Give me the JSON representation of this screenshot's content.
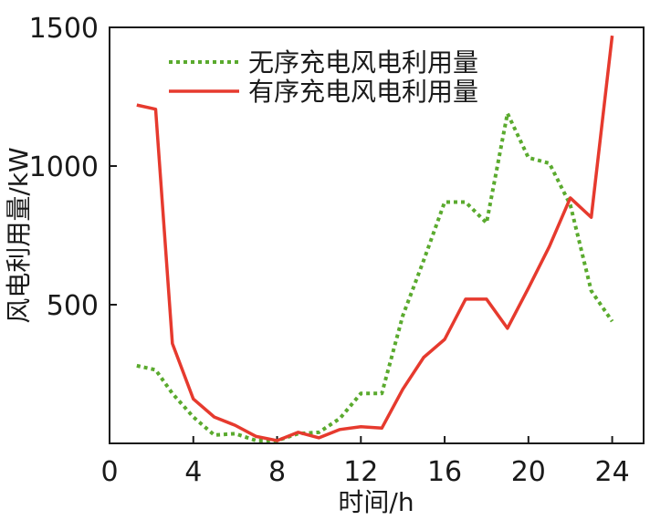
{
  "chart_data": {
    "type": "line",
    "xlabel": "时间/h",
    "ylabel": "风电利用量/kW",
    "xlim": [
      0,
      25.5
    ],
    "ylim": [
      0,
      1500
    ],
    "xticks": [
      0,
      4,
      8,
      12,
      16,
      20,
      24
    ],
    "yticks": [
      500,
      1000,
      1500
    ],
    "xtick_labels": [
      "0",
      "4",
      "8",
      "12",
      "16",
      "20",
      "24"
    ],
    "ytick_labels": [
      "500",
      "1000",
      "1500"
    ],
    "grid": false,
    "legend_position": "top-center",
    "series": [
      {
        "name": "无序充电风电利用量",
        "color": "#5aaa2e",
        "line_style": "dotted",
        "x": [
          1.3,
          2.2,
          3,
          4,
          5,
          6,
          7,
          8,
          9,
          10,
          11,
          12,
          13,
          14,
          15,
          16,
          17,
          18,
          19,
          20,
          21,
          22,
          23,
          24
        ],
        "y": [
          280,
          265,
          180,
          95,
          30,
          35,
          10,
          10,
          35,
          40,
          90,
          180,
          180,
          460,
          660,
          870,
          870,
          795,
          1190,
          1030,
          1010,
          860,
          550,
          440
        ]
      },
      {
        "name": "有序充电风电利用量",
        "color": "#e63a2e",
        "line_style": "solid",
        "x": [
          1.3,
          2.2,
          3,
          4,
          5,
          6,
          7,
          8,
          9,
          10,
          11,
          12,
          13,
          14,
          15,
          16,
          17,
          18,
          19,
          20,
          21,
          22,
          23,
          24
        ],
        "y": [
          1220,
          1205,
          360,
          160,
          95,
          65,
          25,
          10,
          40,
          20,
          50,
          60,
          55,
          195,
          310,
          375,
          520,
          520,
          415,
          560,
          710,
          885,
          815,
          1470
        ]
      }
    ]
  }
}
